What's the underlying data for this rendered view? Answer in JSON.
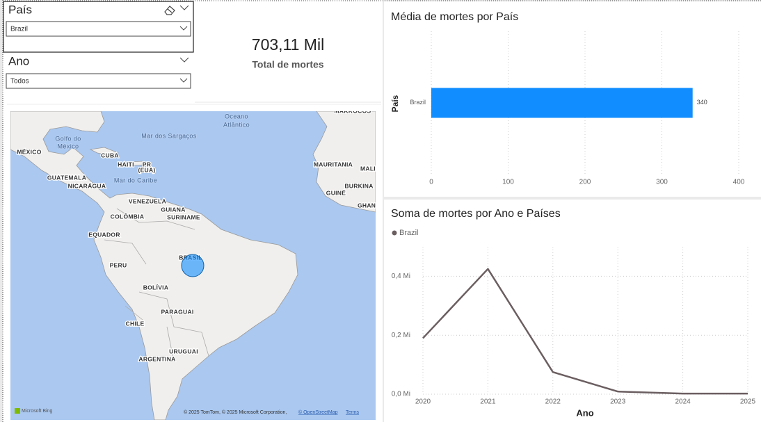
{
  "slicers": [
    {
      "title": "País",
      "selection": "Brazil"
    },
    {
      "title": "Ano",
      "selection": "Todos"
    }
  ],
  "card": {
    "value": "703,11 Mil",
    "label": "Total de mortes"
  },
  "map": {
    "labels": [
      "Oceano",
      "Atlântico",
      "Golfo do",
      "México",
      "Mar dos Sargaços",
      "MÉXICO",
      "CUBA",
      "HAITI",
      "PR",
      "(EUA)",
      "GUATEMALA",
      "NICARÁGUA",
      "Mar do Caribe",
      "VENEZUELA",
      "GUIANA",
      "SURINAME",
      "COLÔMBIA",
      "EQUADOR",
      "PERU",
      "BRASIL",
      "BOLÍVIA",
      "PARAGUAI",
      "CHILE",
      "URUGUAI",
      "ARGENTINA",
      "MARROCOS",
      "MAURITANIA",
      "MALI",
      "BURKINA",
      "GUINÉ",
      "GHAN"
    ],
    "provider": "Microsoft Bing",
    "attribution": "© 2025 TomTom, © 2025 Microsoft Corporation,",
    "osm": "© OpenStreetMap",
    "terms": "Terms"
  },
  "chart_data": [
    {
      "type": "bar",
      "orientation": "horizontal",
      "title": "Média de mortes por País",
      "ylabel": "País",
      "categories": [
        "Brazil"
      ],
      "values": [
        340
      ],
      "color": "#118dff",
      "xlim": [
        0,
        400
      ],
      "xticks": [
        0,
        100,
        200,
        300,
        400
      ],
      "grid": true
    },
    {
      "type": "line",
      "title": "Soma de mortes por Ano e Países",
      "xlabel": "Ano",
      "x": [
        2020,
        2021,
        2022,
        2023,
        2024,
        2025
      ],
      "series": [
        {
          "name": "Brazil",
          "color": "#6b5e61",
          "values": [
            0.19,
            0.425,
            0.075,
            0.009,
            0.002,
            0.002
          ]
        }
      ],
      "xlim": [
        2020,
        2025
      ],
      "xticks": [
        2020,
        2021,
        2022,
        2023,
        2024,
        2025
      ],
      "ylim": [
        0,
        0.5
      ],
      "yticks": [
        {
          "value": 0,
          "label": "0,0 Mi"
        },
        {
          "value": 0.2,
          "label": "0,2 Mi"
        },
        {
          "value": 0.4,
          "label": "0,4 Mi"
        }
      ],
      "grid": true
    }
  ]
}
